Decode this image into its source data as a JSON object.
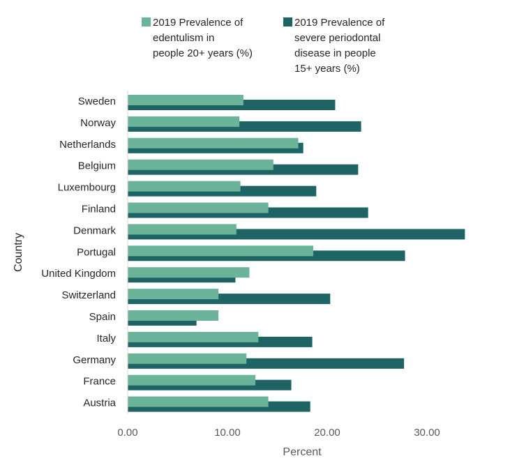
{
  "chart_data": {
    "type": "bar",
    "orientation": "horizontal",
    "title": "",
    "xlabel": "Percent",
    "ylabel": "Country",
    "xlim": [
      0,
      35
    ],
    "xticks": [
      "0.00",
      "10.00",
      "20.00",
      "30.00"
    ],
    "xtick_values": [
      0,
      10,
      20,
      30
    ],
    "grid": false,
    "legend_position": "top",
    "categories": [
      "Sweden",
      "Norway",
      "Netherlands",
      "Belgium",
      "Luxembourg",
      "Finland",
      "Denmark",
      "Portugal",
      "United Kingdom",
      "Switzerland",
      "Spain",
      "Italy",
      "Germany",
      "France",
      "Austria"
    ],
    "series": [
      {
        "name": "2019 Prevalence of edentulism in people 20+ years (%)",
        "legend_lines": [
          "2019 Prevalence of",
          "edentulism in",
          "people 20+ years (%)"
        ],
        "color": "#6bb49a",
        "values": [
          11.6,
          11.2,
          17.1,
          14.6,
          11.3,
          14.1,
          10.9,
          18.6,
          12.2,
          9.1,
          9.1,
          13.1,
          11.9,
          12.8,
          14.1
        ]
      },
      {
        "name": "2019 Prevalence of severe periodontal disease in people 15+ years (%)",
        "legend_lines": [
          "2019 Prevalence of",
          "severe periodontal",
          "disease in people",
          "15+ years (%)"
        ],
        "color": "#1e6464",
        "values": [
          20.8,
          23.4,
          17.6,
          23.1,
          18.9,
          24.1,
          33.8,
          27.8,
          10.8,
          20.3,
          6.9,
          18.5,
          27.7,
          16.4,
          18.3
        ]
      }
    ]
  }
}
